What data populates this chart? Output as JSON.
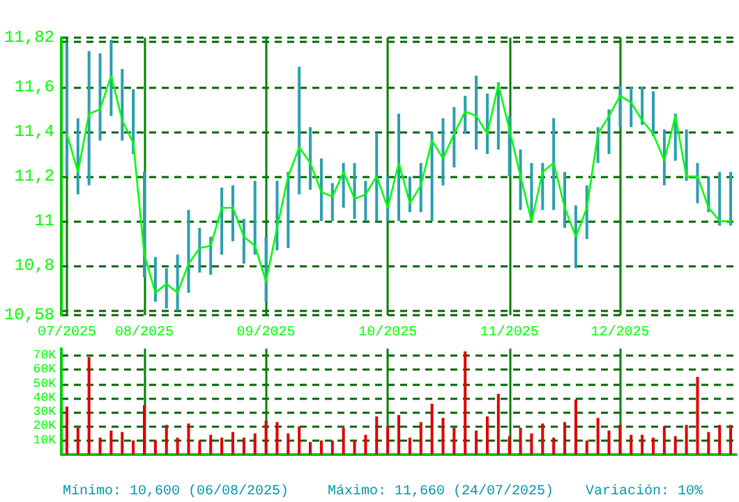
{
  "chart_data": [
    {
      "type": "bar",
      "categories": [
        "07/2025",
        null,
        null,
        null,
        null,
        null,
        null,
        "08/2025",
        null,
        null,
        null,
        null,
        null,
        null,
        null,
        null,
        null,
        null,
        "09/2025",
        null,
        null,
        null,
        null,
        null,
        null,
        null,
        null,
        null,
        null,
        "10/2025",
        null,
        null,
        null,
        null,
        null,
        null,
        null,
        null,
        null,
        null,
        "11/2025",
        null,
        null,
        null,
        null,
        null,
        null,
        null,
        null,
        null,
        "12/2025",
        null,
        null,
        null,
        null,
        null,
        null,
        null,
        null,
        null,
        null
      ],
      "series": [
        {
          "type": "bar",
          "color": "#2a9fae",
          "base": [
            11.2,
            11.12,
            11.16,
            11.36,
            11.47,
            11.36,
            11.3,
            10.75,
            10.64,
            10.61,
            10.6,
            10.68,
            10.77,
            10.76,
            10.85,
            10.91,
            10.81,
            10.85,
            10.64,
            10.87,
            10.88,
            11.12,
            11.14,
            11.0,
            11.0,
            11.06,
            11.01,
            11.0,
            11.0,
            11.0,
            11.0,
            11.04,
            11.04,
            11.0,
            11.16,
            11.24,
            11.39,
            11.32,
            11.3,
            11.32,
            11.2,
            11.05,
            11.0,
            11.05,
            11.05,
            10.97,
            10.79,
            10.92,
            11.26,
            11.3,
            11.42,
            11.42,
            11.43,
            11.38,
            11.16,
            11.27,
            11.18,
            11.08,
            11.04,
            10.98,
            10.98
          ],
          "values": [
            0.6,
            0.34,
            0.6,
            0.39,
            0.34,
            0.32,
            0.29,
            0.47,
            0.2,
            0.18,
            0.25,
            0.37,
            0.2,
            0.17,
            0.3,
            0.25,
            0.2,
            0.33,
            0.29,
            0.31,
            0.34,
            0.57,
            0.28,
            0.28,
            0.17,
            0.2,
            0.25,
            0.18,
            0.39,
            0.2,
            0.48,
            0.16,
            0.22,
            0.4,
            0.3,
            0.27,
            0.17,
            0.33,
            0.27,
            0.3,
            0.27,
            0.27,
            0.26,
            0.21,
            0.41,
            0.25,
            0.28,
            0.24,
            0.16,
            0.2,
            0.19,
            0.18,
            0.17,
            0.2,
            0.25,
            0.21,
            0.23,
            0.18,
            0.16,
            0.24,
            0.24
          ]
        },
        {
          "type": "line",
          "color": "#00ff00",
          "values": [
            11.39,
            11.22,
            11.48,
            11.5,
            11.65,
            11.45,
            11.35,
            10.85,
            10.68,
            10.72,
            10.68,
            10.81,
            10.88,
            10.89,
            11.06,
            11.06,
            10.93,
            10.89,
            10.73,
            10.97,
            11.2,
            11.33,
            11.26,
            11.13,
            11.11,
            11.22,
            11.1,
            11.12,
            11.2,
            11.06,
            11.26,
            11.08,
            11.16,
            11.36,
            11.28,
            11.39,
            11.49,
            11.47,
            11.39,
            11.61,
            11.41,
            11.2,
            11.0,
            11.22,
            11.26,
            11.06,
            10.93,
            11.06,
            11.39,
            11.47,
            11.56,
            11.53,
            11.45,
            11.39,
            11.27,
            11.47,
            11.2,
            11.2,
            11.06,
            11.0,
            11.0
          ]
        }
      ],
      "ylim": [
        10.58,
        11.82
      ],
      "yticks": [
        {
          "value": 10.58,
          "label": "10,58"
        },
        {
          "value": 10.6,
          "label": null
        },
        {
          "value": 10.8,
          "label": "10,8"
        },
        11,
        {
          "value": 11.2,
          "label": "11,2"
        },
        {
          "value": 11.4,
          "label": "11,4"
        },
        {
          "value": 11.6,
          "label": "11,6"
        },
        {
          "value": 11.8,
          "label": null
        },
        {
          "value": 11.82,
          "label": "11,82"
        }
      ],
      "grid": "y",
      "marker": "none",
      "ref_lines": [
        {
          "axis": "x",
          "value": "07/2025",
          "color": "#008000"
        },
        {
          "axis": "x",
          "value": "08/2025",
          "color": "#008000"
        },
        {
          "axis": "x",
          "value": "09/2025",
          "color": "#008000"
        },
        {
          "axis": "x",
          "value": "10/2025",
          "color": "#008000"
        },
        {
          "axis": "x",
          "value": "11/2025",
          "color": "#008000"
        },
        {
          "axis": "x",
          "value": "12/2025",
          "color": "#008000"
        }
      ]
    },
    {
      "type": "bar",
      "categories": [
        "07/2025",
        null,
        null,
        null,
        null,
        null,
        null,
        "08/2025",
        null,
        null,
        null,
        null,
        null,
        null,
        null,
        null,
        null,
        null,
        "09/2025",
        null,
        null,
        null,
        null,
        null,
        null,
        null,
        null,
        null,
        null,
        "10/2025",
        null,
        null,
        null,
        null,
        null,
        null,
        null,
        null,
        null,
        null,
        "11/2025",
        null,
        null,
        null,
        null,
        null,
        null,
        null,
        null,
        null,
        "12/2025",
        null,
        null,
        null,
        null,
        null,
        null,
        null,
        null,
        null,
        null
      ],
      "values": [
        34000,
        19000,
        69000,
        12000,
        17000,
        16000,
        10000,
        35000,
        10000,
        21000,
        12000,
        22000,
        10000,
        14000,
        12000,
        16000,
        12000,
        15000,
        24000,
        23000,
        15000,
        20000,
        9000,
        10000,
        10000,
        19000,
        10000,
        14000,
        27000,
        20000,
        28000,
        12000,
        23000,
        36000,
        26000,
        19000,
        73000,
        17000,
        27000,
        43000,
        13000,
        19000,
        15000,
        22000,
        12000,
        23000,
        39000,
        10000,
        26000,
        17000,
        21000,
        14000,
        14000,
        12000,
        20000,
        13000,
        21000,
        55000,
        16000,
        21000,
        21000
      ],
      "color": "#dd0000",
      "ylim": [
        0,
        75000
      ],
      "yticks": [
        {
          "value": 10000,
          "label": "10K"
        },
        {
          "value": 20000,
          "label": "20K"
        },
        {
          "value": 30000,
          "label": "30K"
        },
        {
          "value": 40000,
          "label": "40K"
        },
        {
          "value": 50000,
          "label": "50K"
        },
        {
          "value": 60000,
          "label": "60K"
        },
        {
          "value": 70000,
          "label": "70K"
        }
      ],
      "grid": "y",
      "tick_labels": "y",
      "ref_lines": [
        {
          "axis": "x",
          "value": "08/2025",
          "color": "#008000"
        },
        {
          "axis": "x",
          "value": "09/2025",
          "color": "#008000"
        },
        {
          "axis": "x",
          "value": "10/2025",
          "color": "#008000"
        },
        {
          "axis": "x",
          "value": "11/2025",
          "color": "#008000"
        },
        {
          "axis": "x",
          "value": "12/2025",
          "color": "#008000"
        }
      ],
      "annotations": [
        "Mínimo: 10,600 (06/08/2025)",
        "Máximo: 11,660 (24/07/2025)",
        "Variación: 10%"
      ]
    }
  ]
}
